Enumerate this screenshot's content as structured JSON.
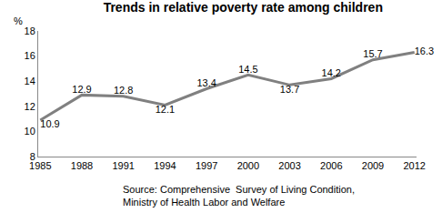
{
  "chart_data": {
    "type": "line",
    "title": "Trends in relative poverty rate among children",
    "ylabel": "%",
    "categories": [
      "1985",
      "1988",
      "1991",
      "1994",
      "1997",
      "2000",
      "2003",
      "2006",
      "2009",
      "2012"
    ],
    "values": [
      10.9,
      12.9,
      12.8,
      12.1,
      13.4,
      14.5,
      13.7,
      14.2,
      15.7,
      16.3
    ],
    "color": "#808080",
    "ylim": [
      8,
      18
    ],
    "yticks": [
      8,
      10,
      12,
      14,
      16,
      18
    ],
    "grid": false,
    "data_labels": true,
    "annotations": [
      "Source: Comprehensive  Survey of Living Condition,",
      "Ministry of Health Labor and Welfare"
    ]
  }
}
